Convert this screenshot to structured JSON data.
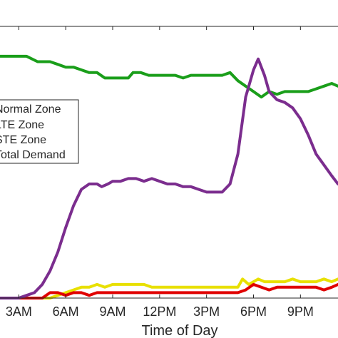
{
  "chart_data": {
    "type": "line",
    "xlabel": "Time of Day",
    "ylabel": "",
    "x_unit": "hours",
    "xlim": [
      1.8,
      23.4
    ],
    "ylim": [
      0,
      1
    ],
    "x_ticks": [
      {
        "x": 3,
        "label": "3AM"
      },
      {
        "x": 6,
        "label": "6AM"
      },
      {
        "x": 9,
        "label": "9AM"
      },
      {
        "x": 12,
        "label": "12PM"
      },
      {
        "x": 15,
        "label": "3PM"
      },
      {
        "x": 18,
        "label": "6PM"
      },
      {
        "x": 21,
        "label": "9PM"
      }
    ],
    "legend": {
      "placement": "left",
      "entries": [
        "Normal Zone",
        "LTE Zone",
        "STE Zone",
        "Total Demand"
      ]
    },
    "series": [
      {
        "name": "Normal Zone",
        "color": "#1a9e1a",
        "points": [
          [
            1.8,
            0.89
          ],
          [
            2.5,
            0.89
          ],
          [
            3.5,
            0.89
          ],
          [
            4.2,
            0.87
          ],
          [
            5.0,
            0.87
          ],
          [
            5.5,
            0.86
          ],
          [
            6.0,
            0.85
          ],
          [
            6.5,
            0.85
          ],
          [
            7.0,
            0.84
          ],
          [
            7.5,
            0.83
          ],
          [
            8.0,
            0.83
          ],
          [
            8.5,
            0.81
          ],
          [
            9.0,
            0.81
          ],
          [
            9.5,
            0.81
          ],
          [
            10.0,
            0.81
          ],
          [
            10.3,
            0.83
          ],
          [
            10.8,
            0.83
          ],
          [
            11.3,
            0.82
          ],
          [
            12.0,
            0.82
          ],
          [
            12.5,
            0.82
          ],
          [
            13.0,
            0.82
          ],
          [
            13.5,
            0.81
          ],
          [
            14.0,
            0.82
          ],
          [
            14.5,
            0.82
          ],
          [
            15.0,
            0.82
          ],
          [
            15.5,
            0.82
          ],
          [
            16.0,
            0.82
          ],
          [
            16.5,
            0.83
          ],
          [
            17.0,
            0.8
          ],
          [
            17.5,
            0.78
          ],
          [
            18.0,
            0.76
          ],
          [
            18.5,
            0.74
          ],
          [
            19.0,
            0.76
          ],
          [
            19.5,
            0.75
          ],
          [
            20.0,
            0.76
          ],
          [
            20.5,
            0.76
          ],
          [
            21.0,
            0.76
          ],
          [
            21.5,
            0.76
          ],
          [
            22.0,
            0.77
          ],
          [
            22.5,
            0.78
          ],
          [
            23.0,
            0.79
          ],
          [
            23.4,
            0.78
          ]
        ]
      },
      {
        "name": "LTE Zone",
        "color": "#e8e000",
        "points": [
          [
            1.8,
            0.0
          ],
          [
            2.5,
            0.0
          ],
          [
            3.0,
            0.0
          ],
          [
            3.5,
            0.0
          ],
          [
            4.0,
            0.0
          ],
          [
            4.5,
            0.0
          ],
          [
            5.0,
            0.0
          ],
          [
            5.5,
            0.01
          ],
          [
            6.0,
            0.02
          ],
          [
            6.5,
            0.03
          ],
          [
            7.0,
            0.04
          ],
          [
            7.5,
            0.04
          ],
          [
            8.0,
            0.05
          ],
          [
            8.5,
            0.04
          ],
          [
            9.0,
            0.05
          ],
          [
            9.5,
            0.05
          ],
          [
            10.0,
            0.05
          ],
          [
            10.5,
            0.05
          ],
          [
            11.0,
            0.05
          ],
          [
            11.5,
            0.04
          ],
          [
            12.0,
            0.04
          ],
          [
            12.5,
            0.04
          ],
          [
            13.0,
            0.04
          ],
          [
            14.0,
            0.04
          ],
          [
            15.0,
            0.04
          ],
          [
            15.5,
            0.04
          ],
          [
            16.0,
            0.04
          ],
          [
            16.5,
            0.04
          ],
          [
            17.0,
            0.04
          ],
          [
            17.3,
            0.07
          ],
          [
            17.7,
            0.05
          ],
          [
            18.0,
            0.06
          ],
          [
            18.3,
            0.07
          ],
          [
            18.7,
            0.06
          ],
          [
            19.0,
            0.06
          ],
          [
            19.5,
            0.06
          ],
          [
            20.0,
            0.06
          ],
          [
            20.5,
            0.07
          ],
          [
            21.0,
            0.06
          ],
          [
            21.5,
            0.06
          ],
          [
            22.0,
            0.06
          ],
          [
            22.5,
            0.07
          ],
          [
            23.0,
            0.06
          ],
          [
            23.4,
            0.07
          ]
        ]
      },
      {
        "name": "STE Zone",
        "color": "#e00000",
        "points": [
          [
            1.8,
            0.0
          ],
          [
            2.5,
            0.0
          ],
          [
            3.0,
            0.0
          ],
          [
            3.5,
            0.0
          ],
          [
            4.0,
            0.0
          ],
          [
            4.5,
            0.0
          ],
          [
            5.0,
            0.02
          ],
          [
            5.5,
            0.02
          ],
          [
            6.0,
            0.01
          ],
          [
            6.5,
            0.02
          ],
          [
            7.0,
            0.02
          ],
          [
            7.5,
            0.01
          ],
          [
            8.0,
            0.02
          ],
          [
            8.5,
            0.02
          ],
          [
            9.0,
            0.02
          ],
          [
            9.5,
            0.02
          ],
          [
            10.0,
            0.02
          ],
          [
            10.5,
            0.02
          ],
          [
            11.0,
            0.02
          ],
          [
            11.5,
            0.02
          ],
          [
            12.0,
            0.02
          ],
          [
            13.0,
            0.02
          ],
          [
            14.0,
            0.02
          ],
          [
            15.0,
            0.02
          ],
          [
            16.0,
            0.02
          ],
          [
            16.5,
            0.02
          ],
          [
            17.0,
            0.02
          ],
          [
            17.5,
            0.03
          ],
          [
            18.0,
            0.05
          ],
          [
            18.5,
            0.04
          ],
          [
            19.0,
            0.03
          ],
          [
            19.5,
            0.04
          ],
          [
            20.0,
            0.04
          ],
          [
            20.5,
            0.04
          ],
          [
            21.0,
            0.04
          ],
          [
            21.5,
            0.04
          ],
          [
            22.0,
            0.04
          ],
          [
            22.5,
            0.03
          ],
          [
            23.0,
            0.04
          ],
          [
            23.4,
            0.05
          ]
        ]
      },
      {
        "name": "Total Demand",
        "color": "#7b2d8e",
        "points": [
          [
            1.8,
            0.0
          ],
          [
            2.5,
            0.0
          ],
          [
            3.0,
            0.0
          ],
          [
            3.5,
            0.01
          ],
          [
            4.0,
            0.02
          ],
          [
            4.5,
            0.05
          ],
          [
            5.0,
            0.1
          ],
          [
            5.5,
            0.17
          ],
          [
            6.0,
            0.26
          ],
          [
            6.5,
            0.34
          ],
          [
            7.0,
            0.4
          ],
          [
            7.5,
            0.42
          ],
          [
            8.0,
            0.42
          ],
          [
            8.3,
            0.41
          ],
          [
            8.7,
            0.42
          ],
          [
            9.0,
            0.43
          ],
          [
            9.5,
            0.43
          ],
          [
            10.0,
            0.44
          ],
          [
            10.5,
            0.44
          ],
          [
            11.0,
            0.43
          ],
          [
            11.5,
            0.44
          ],
          [
            12.0,
            0.43
          ],
          [
            12.5,
            0.42
          ],
          [
            13.0,
            0.42
          ],
          [
            13.5,
            0.41
          ],
          [
            14.0,
            0.41
          ],
          [
            14.5,
            0.4
          ],
          [
            15.0,
            0.39
          ],
          [
            15.5,
            0.39
          ],
          [
            16.0,
            0.39
          ],
          [
            16.5,
            0.42
          ],
          [
            17.0,
            0.53
          ],
          [
            17.5,
            0.74
          ],
          [
            18.0,
            0.84
          ],
          [
            18.3,
            0.88
          ],
          [
            18.7,
            0.82
          ],
          [
            19.0,
            0.76
          ],
          [
            19.5,
            0.73
          ],
          [
            20.0,
            0.72
          ],
          [
            20.5,
            0.7
          ],
          [
            21.0,
            0.66
          ],
          [
            21.5,
            0.6
          ],
          [
            22.0,
            0.53
          ],
          [
            22.5,
            0.49
          ],
          [
            23.0,
            0.45
          ],
          [
            23.4,
            0.42
          ]
        ]
      }
    ]
  }
}
